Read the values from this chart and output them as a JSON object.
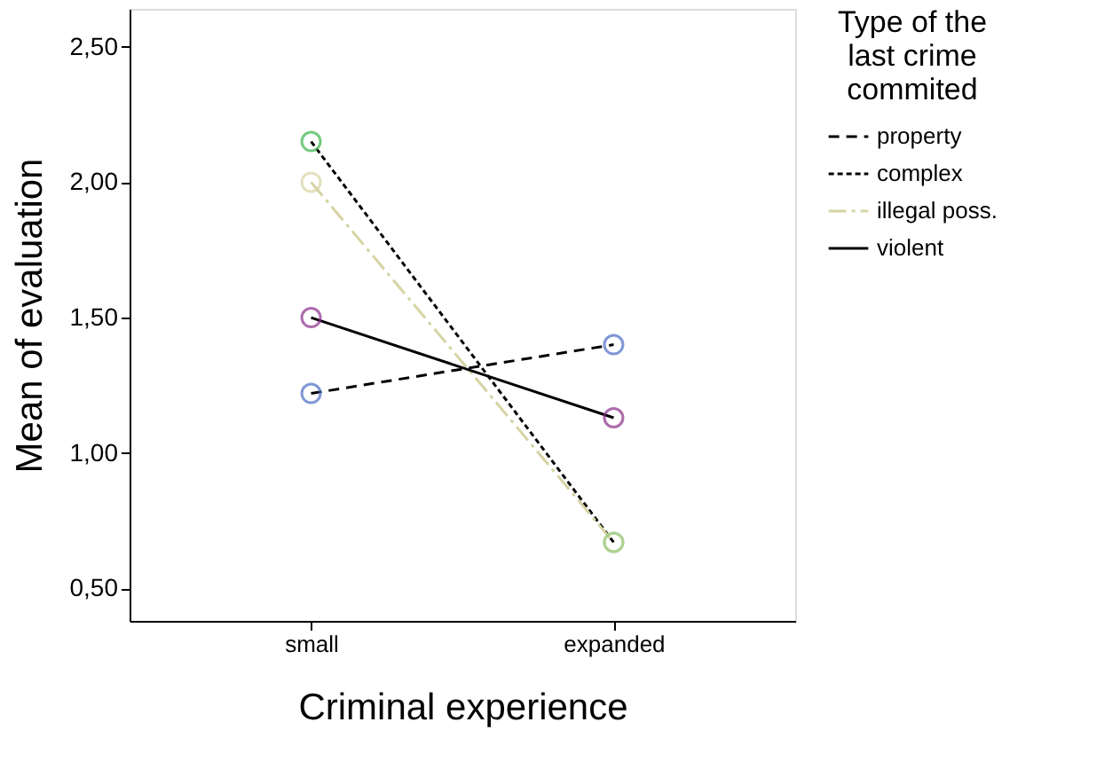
{
  "chart_data": {
    "type": "line",
    "xlabel": "Criminal experience",
    "ylabel": "Mean of evaluation",
    "legend_title": "Type of the last crime commited",
    "categories": [
      "small",
      "expanded"
    ],
    "series": [
      {
        "name": "property",
        "color": "#000000",
        "colors": [
          "#4a6cc4",
          "#4a6cc4"
        ],
        "line_style": "dashed",
        "values": [
          1.22,
          1.4
        ]
      },
      {
        "name": "complex",
        "color": "#000000",
        "colors": [
          "#3cb44b",
          "#3cb44b"
        ],
        "line_style": "dotted",
        "values": [
          2.15,
          0.67
        ]
      },
      {
        "name": "illegal poss.",
        "color": "#d6d3a4",
        "colors": [
          "#d6d3a4",
          "#c9d69a"
        ],
        "line_style": "dashed",
        "values": [
          2.0,
          0.67
        ]
      },
      {
        "name": "violent",
        "color": "#000000",
        "colors": [
          "#8a2f8a",
          "#8a2f8a"
        ],
        "line_style": "solid",
        "values": [
          1.5,
          1.13
        ]
      }
    ],
    "ylim": [
      0.38,
      2.64
    ],
    "yticks": [
      {
        "value": 0.5,
        "label": "0,50"
      },
      {
        "value": 1.0,
        "label": "1,00"
      },
      {
        "value": 1.5,
        "label": "1,50"
      },
      {
        "value": 2.0,
        "label": "2,00"
      },
      {
        "value": 2.5,
        "label": "2,50"
      }
    ],
    "marker": "circle",
    "grid": false,
    "legend": "top right"
  }
}
